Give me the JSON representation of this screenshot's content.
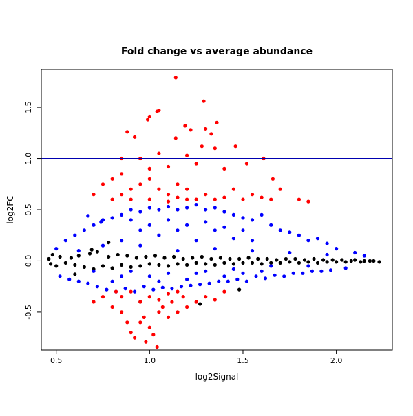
{
  "chart_data": {
    "type": "scatter",
    "title": "Fold change vs average abundance",
    "xlabel": "log2Signal",
    "ylabel": "log2FC",
    "xlim": [
      0.42,
      2.3
    ],
    "ylim": [
      -0.87,
      1.87
    ],
    "x_ticks": [
      0.5,
      1.0,
      1.5,
      2.0
    ],
    "x_tick_labels": [
      "0.5",
      "1.0",
      "1.5",
      "2.0"
    ],
    "y_ticks": [
      -0.5,
      0.0,
      0.5,
      1.0,
      1.5
    ],
    "y_tick_labels": [
      "-0.5",
      "0.0",
      "0.5",
      "1.0",
      "1.5"
    ],
    "reference_line": {
      "y": 1.0,
      "color": "#0000b0"
    },
    "grid": false,
    "series": [
      {
        "color": "#000000",
        "points": [
          [
            0.46,
            0.02
          ],
          [
            0.47,
            -0.03
          ],
          [
            0.48,
            0.06
          ],
          [
            0.5,
            -0.05
          ],
          [
            0.52,
            0.04
          ],
          [
            0.55,
            -0.02
          ],
          [
            0.58,
            0.03
          ],
          [
            0.6,
            -0.04
          ],
          [
            0.62,
            0.05
          ],
          [
            0.65,
            -0.06
          ],
          [
            0.68,
            0.07
          ],
          [
            0.7,
            -0.08
          ],
          [
            0.72,
            0.09
          ],
          [
            0.75,
            -0.05
          ],
          [
            0.78,
            0.04
          ],
          [
            0.8,
            -0.07
          ],
          [
            0.83,
            0.06
          ],
          [
            0.85,
            -0.04
          ],
          [
            0.88,
            0.05
          ],
          [
            0.9,
            -0.06
          ],
          [
            0.93,
            0.03
          ],
          [
            0.95,
            -0.05
          ],
          [
            0.98,
            0.04
          ],
          [
            1.0,
            -0.03
          ],
          [
            1.03,
            0.05
          ],
          [
            1.05,
            -0.04
          ],
          [
            1.08,
            0.03
          ],
          [
            1.1,
            -0.05
          ],
          [
            1.13,
            0.04
          ],
          [
            1.15,
            -0.03
          ],
          [
            1.18,
            0.02
          ],
          [
            1.2,
            -0.04
          ],
          [
            1.23,
            0.03
          ],
          [
            1.25,
            -0.02
          ],
          [
            1.28,
            0.04
          ],
          [
            1.3,
            -0.03
          ],
          [
            1.33,
            0.02
          ],
          [
            1.35,
            -0.04
          ],
          [
            1.38,
            0.03
          ],
          [
            1.4,
            -0.02
          ],
          [
            1.43,
            0.02
          ],
          [
            1.45,
            -0.03
          ],
          [
            1.48,
            0.02
          ],
          [
            1.5,
            -0.02
          ],
          [
            1.53,
            0.03
          ],
          [
            1.55,
            -0.02
          ],
          [
            1.58,
            0.02
          ],
          [
            1.6,
            -0.03
          ],
          [
            1.63,
            0.02
          ],
          [
            1.65,
            -0.02
          ],
          [
            1.68,
            0.01
          ],
          [
            1.7,
            -0.02
          ],
          [
            1.73,
            0.02
          ],
          [
            1.75,
            -0.01
          ],
          [
            1.78,
            0.02
          ],
          [
            1.8,
            -0.02
          ],
          [
            1.83,
            0.01
          ],
          [
            1.85,
            -0.01
          ],
          [
            1.88,
            0.02
          ],
          [
            1.9,
            -0.02
          ],
          [
            1.93,
            0.01
          ],
          [
            1.95,
            -0.01
          ],
          [
            1.98,
            0.01
          ],
          [
            2.0,
            -0.01
          ],
          [
            2.03,
            0.01
          ],
          [
            2.05,
            -0.01
          ],
          [
            2.08,
            0.0
          ],
          [
            2.1,
            0.01
          ],
          [
            2.13,
            -0.01
          ],
          [
            2.15,
            0.0
          ],
          [
            2.18,
            0.0
          ],
          [
            2.2,
            0.0
          ],
          [
            2.23,
            -0.01
          ],
          [
            0.69,
            0.11
          ],
          [
            0.6,
            -0.13
          ],
          [
            1.27,
            -0.42
          ],
          [
            1.48,
            -0.28
          ],
          [
            0.95,
            -0.4
          ],
          [
            0.78,
            0.18
          ]
        ]
      },
      {
        "color": "#0000ff",
        "points": [
          [
            0.5,
            0.12
          ],
          [
            0.52,
            -0.15
          ],
          [
            0.55,
            0.2
          ],
          [
            0.57,
            -0.18
          ],
          [
            0.6,
            0.25
          ],
          [
            0.62,
            -0.2
          ],
          [
            0.65,
            0.3
          ],
          [
            0.67,
            -0.22
          ],
          [
            0.7,
            0.35
          ],
          [
            0.72,
            -0.25
          ],
          [
            0.75,
            0.4
          ],
          [
            0.77,
            -0.28
          ],
          [
            0.8,
            0.42
          ],
          [
            0.82,
            -0.3
          ],
          [
            0.85,
            0.45
          ],
          [
            0.87,
            -0.27
          ],
          [
            0.9,
            0.5
          ],
          [
            0.92,
            -0.3
          ],
          [
            0.95,
            0.48
          ],
          [
            0.97,
            -0.25
          ],
          [
            1.0,
            0.52
          ],
          [
            1.02,
            -0.28
          ],
          [
            1.05,
            0.5
          ],
          [
            1.07,
            -0.26
          ],
          [
            1.1,
            0.53
          ],
          [
            1.12,
            -0.27
          ],
          [
            1.15,
            0.5
          ],
          [
            1.17,
            -0.25
          ],
          [
            1.2,
            0.52
          ],
          [
            1.22,
            -0.24
          ],
          [
            1.25,
            0.55
          ],
          [
            1.27,
            -0.23
          ],
          [
            1.3,
            0.5
          ],
          [
            1.32,
            -0.22
          ],
          [
            1.35,
            0.52
          ],
          [
            1.37,
            -0.2
          ],
          [
            1.4,
            0.48
          ],
          [
            1.42,
            -0.2
          ],
          [
            1.45,
            0.45
          ],
          [
            1.47,
            -0.18
          ],
          [
            1.5,
            0.42
          ],
          [
            1.52,
            -0.2
          ],
          [
            1.55,
            0.4
          ],
          [
            1.57,
            -0.15
          ],
          [
            1.6,
            0.45
          ],
          [
            1.62,
            -0.17
          ],
          [
            1.65,
            0.35
          ],
          [
            1.67,
            -0.14
          ],
          [
            1.7,
            0.3
          ],
          [
            1.72,
            -0.15
          ],
          [
            1.75,
            0.28
          ],
          [
            1.77,
            -0.12
          ],
          [
            1.8,
            0.25
          ],
          [
            1.82,
            -0.12
          ],
          [
            1.85,
            0.2
          ],
          [
            1.87,
            -0.1
          ],
          [
            1.9,
            0.22
          ],
          [
            1.92,
            -0.1
          ],
          [
            1.95,
            0.17
          ],
          [
            1.97,
            -0.09
          ],
          [
            2.0,
            0.12
          ],
          [
            2.05,
            -0.07
          ],
          [
            2.1,
            0.08
          ],
          [
            2.15,
            0.05
          ],
          [
            0.67,
            0.44
          ],
          [
            0.74,
            0.38
          ],
          [
            0.8,
            -0.2
          ],
          [
            0.85,
            0.2
          ],
          [
            0.9,
            -0.1
          ],
          [
            0.95,
            0.15
          ],
          [
            1.0,
            -0.15
          ],
          [
            1.05,
            0.25
          ],
          [
            1.1,
            -0.12
          ],
          [
            1.15,
            0.3
          ],
          [
            1.2,
            -0.18
          ],
          [
            1.25,
            0.2
          ],
          [
            1.3,
            -0.1
          ],
          [
            1.35,
            0.3
          ],
          [
            1.4,
            -0.15
          ],
          [
            1.45,
            0.22
          ],
          [
            1.5,
            -0.12
          ],
          [
            1.55,
            0.2
          ],
          [
            1.6,
            -0.1
          ],
          [
            0.62,
            0.1
          ],
          [
            0.7,
            -0.1
          ],
          [
            0.75,
            0.15
          ],
          [
            0.85,
            -0.15
          ],
          [
            0.95,
            0.3
          ],
          [
            1.05,
            -0.2
          ],
          [
            1.15,
            0.1
          ],
          [
            1.25,
            -0.12
          ],
          [
            1.35,
            0.12
          ],
          [
            1.45,
            -0.08
          ],
          [
            1.55,
            0.1
          ],
          [
            1.65,
            -0.05
          ],
          [
            1.75,
            0.08
          ],
          [
            1.85,
            -0.05
          ],
          [
            1.95,
            0.06
          ],
          [
            0.9,
            0.4
          ],
          [
            1.0,
            0.35
          ],
          [
            1.1,
            0.4
          ],
          [
            1.2,
            0.35
          ],
          [
            1.3,
            0.38
          ],
          [
            1.4,
            0.33
          ],
          [
            1.5,
            0.3
          ]
        ]
      },
      {
        "color": "#ff0000",
        "points": [
          [
            1.14,
            1.79
          ],
          [
            1.29,
            1.56
          ],
          [
            1.05,
            1.47
          ],
          [
            1.04,
            1.46
          ],
          [
            1.36,
            1.35
          ],
          [
            1.0,
            1.41
          ],
          [
            0.99,
            1.38
          ],
          [
            1.19,
            1.32
          ],
          [
            1.22,
            1.28
          ],
          [
            1.3,
            1.29
          ],
          [
            0.88,
            1.26
          ],
          [
            1.33,
            1.24
          ],
          [
            1.14,
            1.2
          ],
          [
            0.92,
            1.21
          ],
          [
            1.46,
            1.12
          ],
          [
            1.28,
            1.12
          ],
          [
            1.61,
            1.0
          ],
          [
            0.85,
            1.0
          ],
          [
            0.95,
            1.0
          ],
          [
            1.05,
            1.05
          ],
          [
            1.2,
            1.03
          ],
          [
            1.35,
            1.1
          ],
          [
            1.25,
            0.95
          ],
          [
            1.1,
            0.92
          ],
          [
            1.0,
            0.9
          ],
          [
            1.4,
            0.9
          ],
          [
            1.52,
            0.95
          ],
          [
            1.66,
            0.8
          ],
          [
            1.7,
            0.7
          ],
          [
            0.7,
            0.65
          ],
          [
            0.75,
            0.75
          ],
          [
            0.8,
            0.8
          ],
          [
            0.85,
            0.85
          ],
          [
            0.9,
            0.7
          ],
          [
            0.95,
            0.75
          ],
          [
            1.0,
            0.8
          ],
          [
            1.05,
            0.7
          ],
          [
            1.1,
            0.65
          ],
          [
            1.15,
            0.75
          ],
          [
            1.2,
            0.7
          ],
          [
            1.25,
            0.6
          ],
          [
            1.3,
            0.65
          ],
          [
            1.35,
            0.6
          ],
          [
            1.4,
            0.62
          ],
          [
            1.45,
            0.7
          ],
          [
            1.5,
            0.6
          ],
          [
            1.55,
            0.65
          ],
          [
            1.6,
            0.62
          ],
          [
            1.65,
            0.6
          ],
          [
            1.8,
            0.6
          ],
          [
            1.85,
            0.58
          ],
          [
            0.8,
            0.6
          ],
          [
            0.85,
            0.65
          ],
          [
            0.9,
            0.6
          ],
          [
            1.0,
            0.6
          ],
          [
            1.1,
            0.58
          ],
          [
            1.2,
            0.6
          ],
          [
            1.15,
            0.62
          ],
          [
            0.7,
            -0.4
          ],
          [
            0.75,
            -0.35
          ],
          [
            0.8,
            -0.45
          ],
          [
            0.85,
            -0.5
          ],
          [
            0.88,
            -0.6
          ],
          [
            0.9,
            -0.7
          ],
          [
            0.92,
            -0.75
          ],
          [
            0.95,
            -0.6
          ],
          [
            0.97,
            -0.55
          ],
          [
            1.0,
            -0.65
          ],
          [
            1.02,
            -0.72
          ],
          [
            1.05,
            -0.5
          ],
          [
            1.07,
            -0.45
          ],
          [
            1.1,
            -0.55
          ],
          [
            1.12,
            -0.4
          ],
          [
            1.15,
            -0.5
          ],
          [
            1.18,
            -0.35
          ],
          [
            1.2,
            -0.45
          ],
          [
            1.25,
            -0.4
          ],
          [
            1.3,
            -0.35
          ],
          [
            1.35,
            -0.38
          ],
          [
            1.4,
            -0.3
          ],
          [
            0.98,
            -0.79
          ],
          [
            1.04,
            -0.84
          ],
          [
            0.82,
            -0.3
          ],
          [
            0.9,
            -0.3
          ],
          [
            1.0,
            -0.35
          ],
          [
            1.1,
            -0.32
          ],
          [
            0.85,
            -0.35
          ],
          [
            0.95,
            -0.4
          ],
          [
            1.05,
            -0.38
          ],
          [
            1.15,
            -0.3
          ]
        ]
      }
    ]
  }
}
